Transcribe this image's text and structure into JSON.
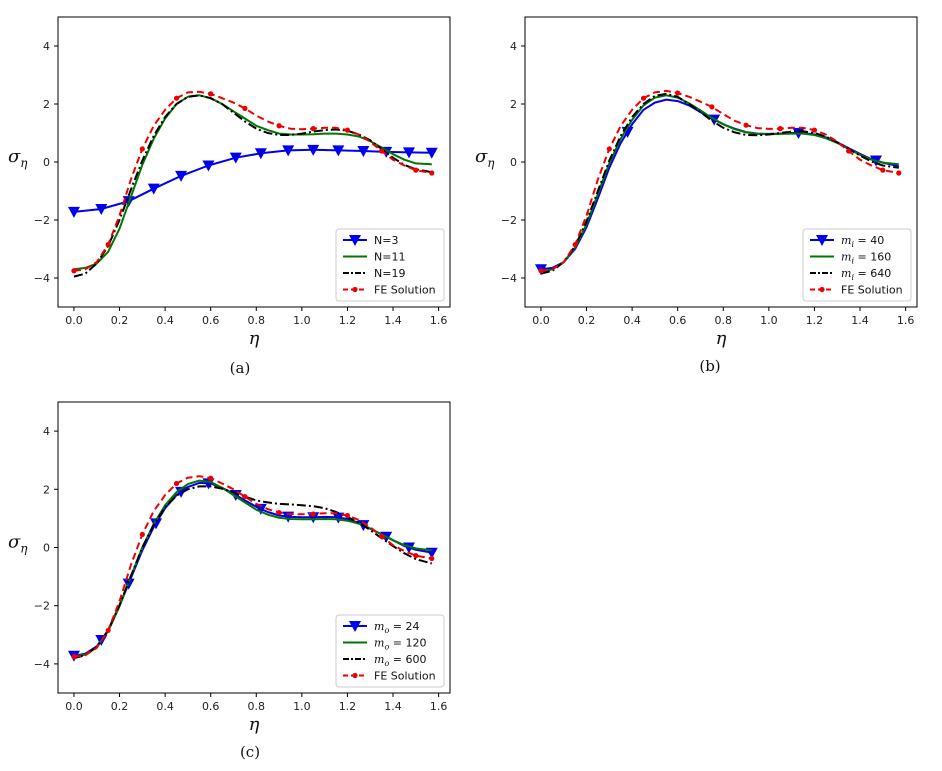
{
  "chart_data": [
    {
      "type": "line",
      "panel": "a",
      "caption": "(a)",
      "xlabel": "η",
      "ylabel": "σ",
      "ylabel_sub": "η",
      "xlim": [
        -0.07,
        1.65
      ],
      "ylim": [
        -5,
        5
      ],
      "xticks": [
        "0.0",
        "0.2",
        "0.4",
        "0.6",
        "0.8",
        "1.0",
        "1.2",
        "1.4",
        "1.6"
      ],
      "yticks": [
        "-4",
        "-2",
        "0",
        "2",
        "4"
      ],
      "legend_position": "lower-right",
      "series": [
        {
          "name": "N=3",
          "color": "#0000ee",
          "style": "solid",
          "marker": "triangle-down",
          "x": [
            0.0,
            0.12,
            0.24,
            0.35,
            0.47,
            0.59,
            0.71,
            0.82,
            0.94,
            1.05,
            1.16,
            1.27,
            1.37,
            1.47,
            1.57
          ],
          "y": [
            -1.72,
            -1.62,
            -1.35,
            -0.92,
            -0.48,
            -0.12,
            0.15,
            0.3,
            0.4,
            0.42,
            0.4,
            0.38,
            0.35,
            0.33,
            0.32
          ]
        },
        {
          "name": "N=11",
          "color": "#007700",
          "style": "solid",
          "marker": "none",
          "x": [
            0.0,
            0.05,
            0.1,
            0.15,
            0.2,
            0.25,
            0.3,
            0.35,
            0.4,
            0.45,
            0.5,
            0.55,
            0.6,
            0.65,
            0.7,
            0.75,
            0.8,
            0.85,
            0.9,
            0.95,
            1.0,
            1.05,
            1.1,
            1.15,
            1.2,
            1.25,
            1.3,
            1.35,
            1.4,
            1.45,
            1.5,
            1.57
          ],
          "y": [
            -3.7,
            -3.65,
            -3.5,
            -3.1,
            -2.3,
            -1.2,
            -0.1,
            0.8,
            1.5,
            2.0,
            2.25,
            2.3,
            2.2,
            2.0,
            1.75,
            1.5,
            1.25,
            1.1,
            0.98,
            0.95,
            0.95,
            0.96,
            0.98,
            0.98,
            0.95,
            0.88,
            0.72,
            0.5,
            0.27,
            0.08,
            -0.05,
            -0.08
          ]
        },
        {
          "name": "N=19",
          "color": "#000000",
          "style": "dashdot",
          "marker": "none",
          "x": [
            0.0,
            0.05,
            0.1,
            0.15,
            0.2,
            0.25,
            0.3,
            0.35,
            0.4,
            0.45,
            0.5,
            0.55,
            0.6,
            0.65,
            0.7,
            0.75,
            0.8,
            0.85,
            0.9,
            0.95,
            1.0,
            1.05,
            1.1,
            1.15,
            1.2,
            1.25,
            1.3,
            1.35,
            1.4,
            1.45,
            1.5,
            1.57
          ],
          "y": [
            -3.95,
            -3.85,
            -3.5,
            -2.9,
            -2.0,
            -0.95,
            0.05,
            0.9,
            1.55,
            2.0,
            2.25,
            2.3,
            2.2,
            2.0,
            1.7,
            1.4,
            1.15,
            1.0,
            0.93,
            0.93,
            0.98,
            1.05,
            1.1,
            1.12,
            1.08,
            0.95,
            0.75,
            0.45,
            0.15,
            -0.1,
            -0.25,
            -0.35
          ]
        },
        {
          "name": "FE Solution",
          "color": "#ee0000",
          "style": "dashed",
          "marker": "dot",
          "x": [
            0.0,
            0.05,
            0.1,
            0.15,
            0.2,
            0.25,
            0.3,
            0.35,
            0.4,
            0.45,
            0.5,
            0.55,
            0.6,
            0.65,
            0.7,
            0.75,
            0.8,
            0.85,
            0.9,
            0.95,
            1.0,
            1.05,
            1.1,
            1.15,
            1.2,
            1.25,
            1.3,
            1.35,
            1.4,
            1.45,
            1.5,
            1.57
          ],
          "y": [
            -3.75,
            -3.7,
            -3.45,
            -2.85,
            -1.85,
            -0.6,
            0.45,
            1.25,
            1.8,
            2.2,
            2.4,
            2.42,
            2.35,
            2.2,
            2.05,
            1.85,
            1.6,
            1.4,
            1.25,
            1.15,
            1.13,
            1.15,
            1.18,
            1.18,
            1.1,
            0.95,
            0.7,
            0.38,
            0.08,
            -0.12,
            -0.28,
            -0.38
          ]
        }
      ]
    },
    {
      "type": "line",
      "panel": "b",
      "caption": "(b)",
      "xlabel": "η",
      "ylabel": "σ",
      "ylabel_sub": "η",
      "xlim": [
        -0.07,
        1.65
      ],
      "ylim": [
        -5,
        5
      ],
      "xticks": [
        "0.0",
        "0.2",
        "0.4",
        "0.6",
        "0.8",
        "1.0",
        "1.2",
        "1.4",
        "1.6"
      ],
      "yticks": [
        "-4",
        "-2",
        "0",
        "2",
        "4"
      ],
      "legend_position": "lower-right",
      "series": [
        {
          "name": "m",
          "sub": "i",
          "suffix": " = 40",
          "color": "#0000ee",
          "style": "solid",
          "marker": "triangle-down",
          "marker_x": [
            0.0,
            0.38,
            0.76,
            1.13,
            1.47
          ],
          "x": [
            0.0,
            0.05,
            0.1,
            0.15,
            0.2,
            0.25,
            0.3,
            0.35,
            0.4,
            0.45,
            0.5,
            0.55,
            0.6,
            0.65,
            0.7,
            0.75,
            0.8,
            0.85,
            0.9,
            0.95,
            1.0,
            1.05,
            1.1,
            1.15,
            1.2,
            1.25,
            1.3,
            1.35,
            1.4,
            1.45,
            1.5,
            1.57
          ],
          "y": [
            -3.7,
            -3.65,
            -3.45,
            -3.0,
            -2.25,
            -1.25,
            -0.2,
            0.65,
            1.3,
            1.8,
            2.05,
            2.15,
            2.1,
            1.95,
            1.72,
            1.5,
            1.3,
            1.15,
            1.03,
            0.98,
            0.97,
            0.98,
            1.0,
            1.0,
            0.95,
            0.85,
            0.68,
            0.48,
            0.28,
            0.1,
            -0.02,
            -0.15
          ]
        },
        {
          "name": "m",
          "sub": "i",
          "suffix": " = 160",
          "color": "#007700",
          "style": "solid",
          "marker": "none",
          "x": [
            0.0,
            0.05,
            0.1,
            0.15,
            0.2,
            0.25,
            0.3,
            0.35,
            0.4,
            0.45,
            0.5,
            0.55,
            0.6,
            0.65,
            0.7,
            0.75,
            0.8,
            0.85,
            0.9,
            0.95,
            1.0,
            1.05,
            1.1,
            1.15,
            1.2,
            1.25,
            1.3,
            1.35,
            1.4,
            1.45,
            1.5,
            1.57
          ],
          "y": [
            -3.8,
            -3.7,
            -3.45,
            -2.95,
            -2.15,
            -1.1,
            -0.05,
            0.8,
            1.45,
            1.95,
            2.22,
            2.3,
            2.22,
            2.02,
            1.78,
            1.52,
            1.3,
            1.13,
            1.02,
            0.97,
            0.96,
            0.97,
            0.98,
            0.98,
            0.93,
            0.82,
            0.66,
            0.45,
            0.25,
            0.08,
            -0.02,
            -0.08
          ]
        },
        {
          "name": "m",
          "sub": "i",
          "suffix": " = 640",
          "color": "#000000",
          "style": "dashdot",
          "marker": "none",
          "x": [
            0.0,
            0.05,
            0.1,
            0.15,
            0.2,
            0.25,
            0.3,
            0.35,
            0.4,
            0.45,
            0.5,
            0.55,
            0.6,
            0.65,
            0.7,
            0.75,
            0.8,
            0.85,
            0.9,
            0.95,
            1.0,
            1.05,
            1.1,
            1.15,
            1.2,
            1.25,
            1.3,
            1.35,
            1.4,
            1.45,
            1.5,
            1.57
          ],
          "y": [
            -3.85,
            -3.75,
            -3.45,
            -2.9,
            -2.05,
            -1.0,
            0.05,
            0.9,
            1.55,
            2.0,
            2.28,
            2.35,
            2.25,
            2.0,
            1.72,
            1.42,
            1.18,
            1.02,
            0.93,
            0.92,
            0.95,
            1.0,
            1.05,
            1.06,
            1.0,
            0.88,
            0.68,
            0.45,
            0.22,
            0.02,
            -0.12,
            -0.2
          ]
        },
        {
          "name": "FE Solution",
          "color": "#ee0000",
          "style": "dashed",
          "marker": "dot",
          "x": [
            0.0,
            0.05,
            0.1,
            0.15,
            0.2,
            0.25,
            0.3,
            0.35,
            0.4,
            0.45,
            0.5,
            0.55,
            0.6,
            0.65,
            0.7,
            0.75,
            0.8,
            0.85,
            0.9,
            0.95,
            1.0,
            1.05,
            1.1,
            1.15,
            1.2,
            1.25,
            1.3,
            1.35,
            1.4,
            1.45,
            1.5,
            1.57
          ],
          "y": [
            -3.75,
            -3.7,
            -3.45,
            -2.85,
            -1.85,
            -0.6,
            0.45,
            1.25,
            1.8,
            2.2,
            2.4,
            2.45,
            2.38,
            2.25,
            2.08,
            1.9,
            1.65,
            1.42,
            1.27,
            1.17,
            1.14,
            1.15,
            1.18,
            1.18,
            1.1,
            0.95,
            0.7,
            0.38,
            0.08,
            -0.12,
            -0.28,
            -0.38
          ]
        }
      ]
    },
    {
      "type": "line",
      "panel": "c",
      "caption": "(c)",
      "xlabel": "η",
      "ylabel": "σ",
      "ylabel_sub": "η",
      "xlim": [
        -0.07,
        1.65
      ],
      "ylim": [
        -5,
        5
      ],
      "xticks": [
        "0.0",
        "0.2",
        "0.4",
        "0.6",
        "0.8",
        "1.0",
        "1.2",
        "1.4",
        "1.6"
      ],
      "yticks": [
        "-4",
        "-2",
        "0",
        "2",
        "4"
      ],
      "legend_position": "lower-right",
      "series": [
        {
          "name": "m",
          "sub": "o",
          "suffix": " = 24",
          "color": "#0000ee",
          "style": "solid",
          "marker": "triangle-down",
          "marker_x": [
            0.0,
            0.12,
            0.24,
            0.36,
            0.47,
            0.59,
            0.71,
            0.82,
            0.94,
            1.05,
            1.16,
            1.27,
            1.37,
            1.47,
            1.57
          ],
          "x": [
            0.0,
            0.05,
            0.1,
            0.15,
            0.2,
            0.25,
            0.3,
            0.35,
            0.4,
            0.45,
            0.5,
            0.55,
            0.6,
            0.65,
            0.7,
            0.75,
            0.8,
            0.85,
            0.9,
            0.95,
            1.0,
            1.05,
            1.1,
            1.15,
            1.2,
            1.25,
            1.3,
            1.35,
            1.4,
            1.45,
            1.5,
            1.57
          ],
          "y": [
            -3.72,
            -3.65,
            -3.4,
            -2.85,
            -2.0,
            -1.05,
            -0.1,
            0.7,
            1.35,
            1.8,
            2.08,
            2.22,
            2.2,
            2.05,
            1.85,
            1.62,
            1.4,
            1.22,
            1.1,
            1.05,
            1.04,
            1.04,
            1.05,
            1.04,
            0.98,
            0.85,
            0.65,
            0.45,
            0.25,
            0.05,
            -0.08,
            -0.18
          ]
        },
        {
          "name": "m",
          "sub": "o",
          "suffix": " = 120",
          "color": "#007700",
          "style": "solid",
          "marker": "none",
          "x": [
            0.0,
            0.05,
            0.1,
            0.15,
            0.2,
            0.25,
            0.3,
            0.35,
            0.4,
            0.45,
            0.5,
            0.55,
            0.6,
            0.65,
            0.7,
            0.75,
            0.8,
            0.85,
            0.9,
            0.95,
            1.0,
            1.05,
            1.1,
            1.15,
            1.2,
            1.25,
            1.3,
            1.35,
            1.4,
            1.45,
            1.5,
            1.57
          ],
          "y": [
            -3.75,
            -3.68,
            -3.42,
            -2.88,
            -2.02,
            -1.0,
            0.0,
            0.8,
            1.45,
            1.9,
            2.18,
            2.3,
            2.25,
            2.05,
            1.8,
            1.55,
            1.3,
            1.13,
            1.02,
            0.98,
            0.97,
            0.97,
            0.98,
            0.97,
            0.92,
            0.82,
            0.65,
            0.45,
            0.25,
            0.08,
            -0.03,
            -0.1
          ]
        },
        {
          "name": "m",
          "sub": "o",
          "suffix": " = 600",
          "color": "#000000",
          "style": "dashdot",
          "marker": "none",
          "x": [
            0.0,
            0.05,
            0.1,
            0.15,
            0.2,
            0.25,
            0.3,
            0.35,
            0.4,
            0.45,
            0.5,
            0.55,
            0.6,
            0.65,
            0.7,
            0.75,
            0.8,
            0.85,
            0.9,
            0.95,
            1.0,
            1.05,
            1.1,
            1.15,
            1.2,
            1.25,
            1.3,
            1.35,
            1.4,
            1.45,
            1.5,
            1.57
          ],
          "y": [
            -3.8,
            -3.7,
            -3.42,
            -2.85,
            -1.98,
            -0.98,
            0.0,
            0.78,
            1.38,
            1.78,
            2.0,
            2.1,
            2.1,
            2.02,
            1.9,
            1.75,
            1.62,
            1.55,
            1.5,
            1.48,
            1.45,
            1.42,
            1.35,
            1.22,
            1.05,
            0.85,
            0.6,
            0.32,
            0.05,
            -0.2,
            -0.4,
            -0.55
          ]
        },
        {
          "name": "FE Solution",
          "color": "#ee0000",
          "style": "dashed",
          "marker": "dot",
          "x": [
            0.0,
            0.05,
            0.1,
            0.15,
            0.2,
            0.25,
            0.3,
            0.35,
            0.4,
            0.45,
            0.5,
            0.55,
            0.6,
            0.65,
            0.7,
            0.75,
            0.8,
            0.85,
            0.9,
            0.95,
            1.0,
            1.05,
            1.1,
            1.15,
            1.2,
            1.25,
            1.3,
            1.35,
            1.4,
            1.45,
            1.5,
            1.57
          ],
          "y": [
            -3.75,
            -3.7,
            -3.45,
            -2.85,
            -1.85,
            -0.6,
            0.45,
            1.25,
            1.8,
            2.2,
            2.4,
            2.45,
            2.38,
            2.2,
            2.0,
            1.75,
            1.5,
            1.32,
            1.2,
            1.15,
            1.14,
            1.15,
            1.18,
            1.18,
            1.1,
            0.95,
            0.7,
            0.38,
            0.08,
            -0.12,
            -0.28,
            -0.38
          ]
        }
      ]
    }
  ]
}
